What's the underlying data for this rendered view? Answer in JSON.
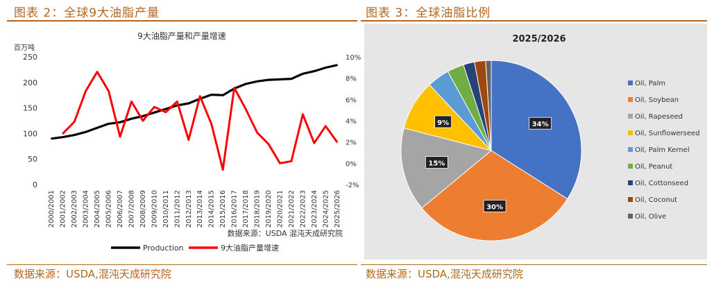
{
  "left": {
    "fig_title": "图表 2：全球9大油脂产量",
    "source_inner": "数据来源：USDA  混沌天成研究院",
    "source_bottom": "数据来源：USDA,混沌天成研究院"
  },
  "right": {
    "fig_title": "图表 3：全球油脂比例",
    "source_bottom": "数据来源：USDA,混沌天成研究院"
  },
  "colors": {
    "accent": "#b5651d",
    "production": "#000000",
    "growth": "#ff0000"
  },
  "chart_data": [
    {
      "type": "line",
      "title": "9大油脂产量和产量增速",
      "ylabel": "百万吨",
      "x": [
        "2000/2001",
        "2001/2002",
        "2002/2003",
        "2003/2004",
        "2004/2005",
        "2005/2006",
        "2006/2007",
        "2007/2008",
        "2008/2009",
        "2009/2010",
        "2010/2011",
        "2011/2012",
        "2012/2013",
        "2013/2014",
        "2014/2015",
        "2015/2016",
        "2016/2017",
        "2017/2018",
        "2018/2019",
        "2019/2020",
        "2020/2021",
        "2021/2022",
        "2022/2023",
        "2023/2024",
        "2024/2025",
        "2025/2026"
      ],
      "ylim": [
        0,
        250
      ],
      "yticks": [
        "0",
        "50",
        "100",
        "150",
        "200",
        "250"
      ],
      "y2lim": [
        -2,
        10
      ],
      "y2ticks": [
        "-2%",
        "0%",
        "2%",
        "4%",
        "6%",
        "8%",
        "10%"
      ],
      "legend_position": "bottom",
      "series": [
        {
          "name": "Production",
          "axis": "left",
          "color": "#000000",
          "values": [
            90,
            93,
            97,
            103,
            111,
            119,
            122,
            129,
            134,
            141,
            148,
            155,
            159,
            168,
            176,
            175,
            188,
            197,
            202,
            205,
            206,
            207,
            217,
            222,
            229,
            234
          ]
        },
        {
          "name": "9大油脂产量增速",
          "axis": "right",
          "color": "#ff0000",
          "values": [
            null,
            2.8,
            3.9,
            6.8,
            8.6,
            6.8,
            2.5,
            5.8,
            4.0,
            5.3,
            4.8,
            5.8,
            2.2,
            6.3,
            3.7,
            -0.6,
            7.1,
            5.1,
            2.9,
            1.8,
            0.0,
            0.2,
            4.6,
            1.9,
            3.5,
            2.0
          ]
        }
      ]
    },
    {
      "type": "pie",
      "title": "2025/2026",
      "legend_position": "right",
      "slices": [
        {
          "name": "Oil, Palm",
          "value": 34,
          "label": "34%",
          "color": "#4472c4"
        },
        {
          "name": "Oil, Soybean",
          "value": 30,
          "label": "30%",
          "color": "#ed7d31"
        },
        {
          "name": "Oil, Rapeseed",
          "value": 15,
          "label": "15%",
          "color": "#a5a5a5"
        },
        {
          "name": "Oil, Sunflowerseed",
          "value": 9,
          "label": "9%",
          "color": "#ffc000"
        },
        {
          "name": "Oil, Palm Kernel",
          "value": 4,
          "label": "",
          "color": "#5b9bd5"
        },
        {
          "name": "Oil, Peanut",
          "value": 3,
          "label": "",
          "color": "#70ad47"
        },
        {
          "name": "Oil, Cottonseed",
          "value": 2,
          "label": "",
          "color": "#264478"
        },
        {
          "name": "Oil, Coconut",
          "value": 2,
          "label": "",
          "color": "#9e480e"
        },
        {
          "name": "Oil, Olive",
          "value": 1,
          "label": "",
          "color": "#636363"
        }
      ]
    }
  ]
}
